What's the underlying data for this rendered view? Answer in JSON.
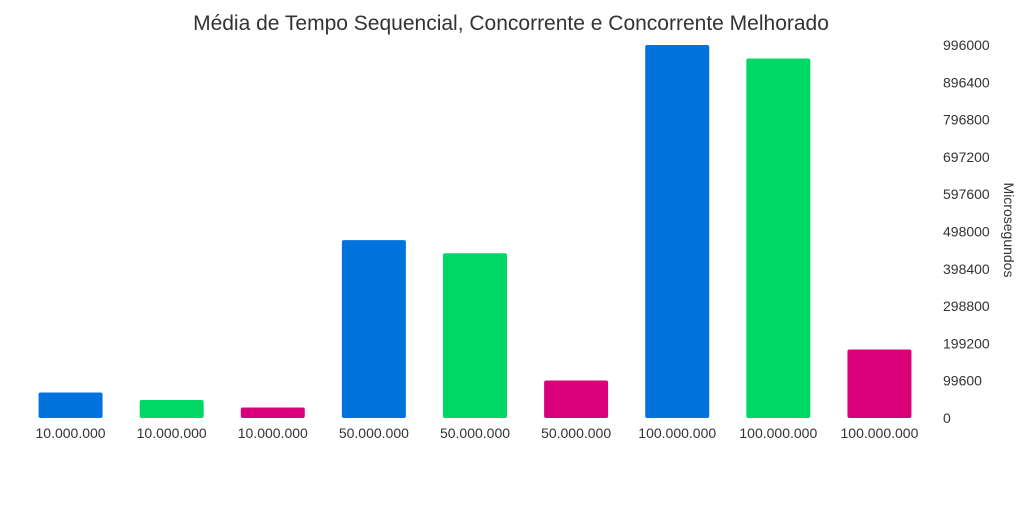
{
  "chart_data": {
    "type": "bar",
    "title": "Média de Tempo Sequencial, Concorrente e Concorrente Melhorado",
    "xlabel": "",
    "ylabel": "Microsegundos",
    "y_axis_position": "right",
    "ylim": [
      0,
      996000
    ],
    "yticks": [
      "0",
      "99600",
      "199200",
      "298800",
      "398400",
      "498000",
      "597600",
      "697200",
      "796800",
      "896400",
      "996000"
    ],
    "grid": false,
    "legend": "none",
    "categories": [
      "10.000.000",
      "10.000.000",
      "10.000.000",
      "50.000.000",
      "50.000.000",
      "50.000.000",
      "100.000.000",
      "100.000.000",
      "100.000.000"
    ],
    "values": [
      68000,
      48000,
      28000,
      475000,
      440000,
      100000,
      996000,
      960000,
      183000
    ],
    "colors": [
      "#0073dd",
      "#00d866",
      "#d9007a",
      "#0073dd",
      "#00d866",
      "#d9007a",
      "#0073dd",
      "#00d866",
      "#d9007a"
    ]
  }
}
